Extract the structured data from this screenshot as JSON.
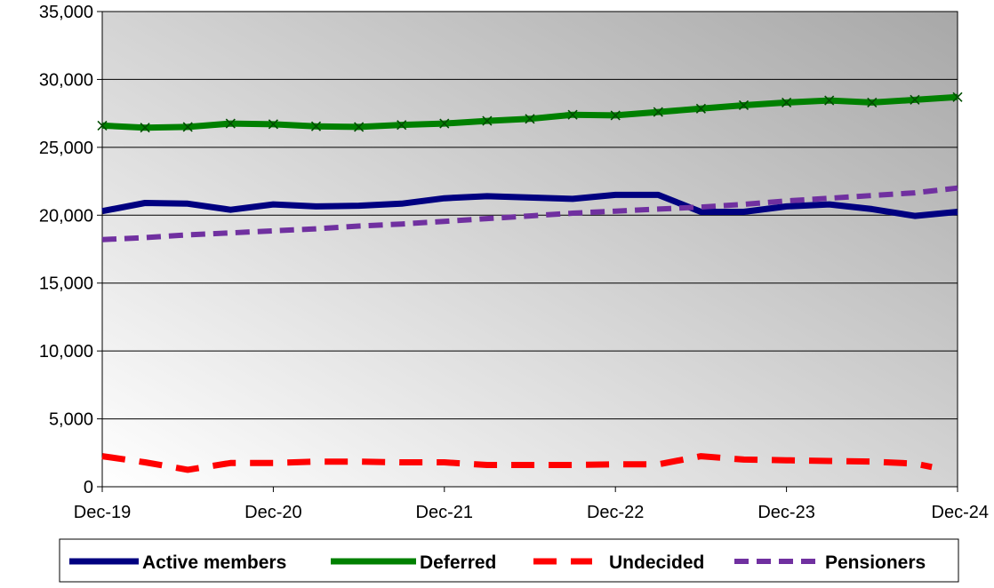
{
  "chart_data": {
    "type": "line",
    "x_ticks": [
      "Dec-19",
      "Dec-20",
      "Dec-21",
      "Dec-22",
      "Dec-23",
      "Dec-24"
    ],
    "y_ticks": [
      "0",
      "5,000",
      "10,000",
      "15,000",
      "20,000",
      "25,000",
      "30,000",
      "35,000"
    ],
    "ylim": [
      0,
      35000
    ],
    "x_range_quarters": [
      0,
      20
    ],
    "grid": "horizontal",
    "legend_position": "bottom",
    "series": [
      {
        "name": "Active members",
        "color": "#000080",
        "style": "solid",
        "x": [
          0,
          1,
          2,
          3,
          4,
          5,
          6,
          7,
          8,
          9,
          10,
          11,
          12,
          13,
          14,
          15,
          16,
          17,
          18,
          19,
          20
        ],
        "values": [
          20300,
          20900,
          20850,
          20400,
          20800,
          20650,
          20700,
          20850,
          21250,
          21400,
          21300,
          21200,
          21500,
          21500,
          20250,
          20250,
          20650,
          20800,
          20450,
          19950,
          20250
        ]
      },
      {
        "name": "Deferred",
        "color": "#008000",
        "style": "solid-markers",
        "x": [
          0,
          1,
          2,
          3,
          4,
          5,
          6,
          7,
          8,
          9,
          10,
          11,
          12,
          13,
          14,
          15,
          16,
          17,
          18,
          19,
          20
        ],
        "values": [
          26600,
          26450,
          26500,
          26750,
          26700,
          26550,
          26500,
          26650,
          26750,
          26950,
          27100,
          27400,
          27350,
          27600,
          27850,
          28100,
          28300,
          28450,
          28300,
          28500,
          28700
        ]
      },
      {
        "name": "Undecided",
        "color": "#ff0000",
        "style": "long-dash",
        "x": [
          0,
          1,
          2,
          3,
          4,
          5,
          6,
          7,
          8,
          9,
          10,
          11,
          12,
          13,
          14,
          15,
          16,
          17,
          18,
          19,
          19.4
        ],
        "values": [
          2250,
          1800,
          1250,
          1750,
          1750,
          1850,
          1850,
          1800,
          1800,
          1600,
          1600,
          1600,
          1650,
          1650,
          2250,
          2000,
          1950,
          1900,
          1850,
          1700,
          1450
        ]
      },
      {
        "name": "Pensioners",
        "color": "#7030a0",
        "style": "dash",
        "x": [
          0,
          1,
          2,
          3,
          4,
          5,
          6,
          7,
          8,
          9,
          10,
          11,
          12,
          13,
          14,
          15,
          16,
          17,
          18,
          19,
          20
        ],
        "values": [
          18200,
          18350,
          18550,
          18700,
          18850,
          19000,
          19200,
          19350,
          19550,
          19750,
          19950,
          20150,
          20300,
          20450,
          20600,
          20800,
          21050,
          21250,
          21450,
          21650,
          22000
        ]
      }
    ]
  }
}
